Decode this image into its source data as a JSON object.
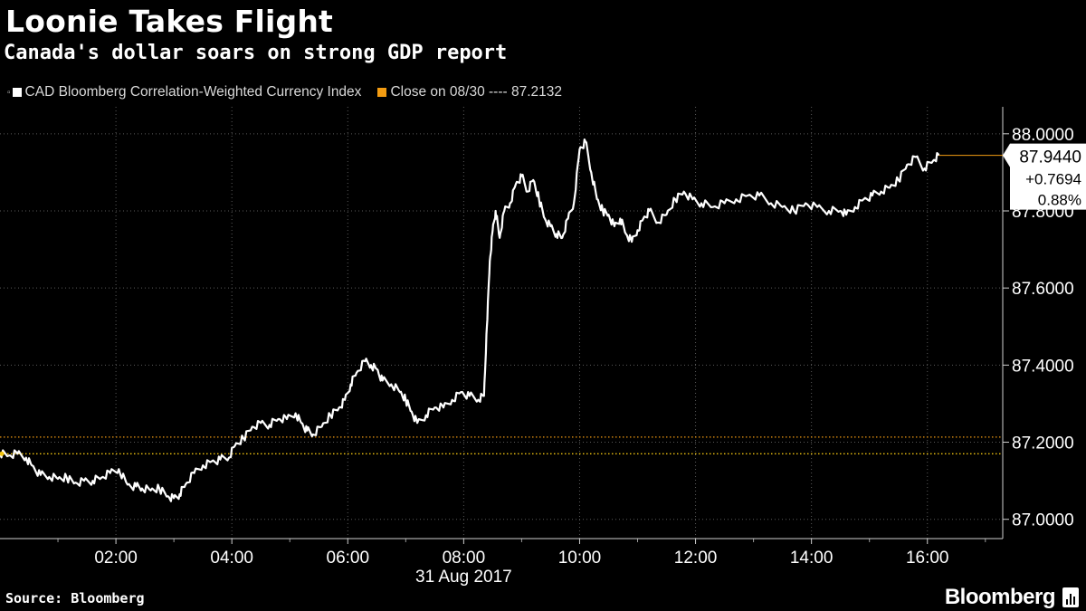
{
  "header": {
    "title": "Loonie Takes Flight",
    "subtitle": "Canada's dollar soars on strong GDP report"
  },
  "legend": {
    "dropdown_glyph": "▫",
    "items": [
      {
        "label": "CAD Bloomberg Correlation-Weighted Currency Index",
        "color": "#ffffff"
      },
      {
        "label": "Close on 08/30 ---- 87.2132",
        "color": "#f39c12"
      }
    ]
  },
  "footer": {
    "source": "Source: Bloomberg",
    "brand": "Bloomberg"
  },
  "chart_data": {
    "type": "line",
    "date_label": "31 Aug 2017",
    "x_tick_labels": [
      "02:00",
      "04:00",
      "06:00",
      "08:00",
      "10:00",
      "12:00",
      "14:00",
      "16:00"
    ],
    "x_ticks_hours": [
      2,
      4,
      6,
      8,
      10,
      12,
      14,
      16
    ],
    "xlim_hours": [
      0,
      17.3
    ],
    "y_tick_labels": [
      "87.0000",
      "87.2000",
      "87.4000",
      "87.6000",
      "87.8000",
      "88.0000"
    ],
    "y_ticks": [
      87.0,
      87.2,
      87.4,
      87.6,
      87.8,
      88.0
    ],
    "ylim": [
      86.95,
      88.07
    ],
    "grid": true,
    "legend_position": "top-left",
    "reference_lines": [
      {
        "value": 87.2132,
        "label": "Close on 08/30",
        "color": "#f39c12",
        "style": "dotted"
      },
      {
        "value": 87.17,
        "color": "#f1c40f",
        "style": "dotted"
      }
    ],
    "callout": {
      "last_value": "87.9440",
      "change": "+0.7694",
      "change_pct": "0.88%",
      "value": 87.944
    },
    "series": [
      {
        "name": "CAD Bloomberg Correlation-Weighted Currency Index",
        "color": "#ffffff",
        "x": [
          0.0,
          0.15,
          0.3,
          0.45,
          0.55,
          0.7,
          0.85,
          1.0,
          1.15,
          1.3,
          1.45,
          1.6,
          1.75,
          1.9,
          2.05,
          2.2,
          2.35,
          2.45,
          2.6,
          2.75,
          2.9,
          3.0,
          3.1,
          3.2,
          3.35,
          3.5,
          3.65,
          3.8,
          3.95,
          4.05,
          4.2,
          4.35,
          4.5,
          4.65,
          4.8,
          4.95,
          5.1,
          5.2,
          5.3,
          5.4,
          5.55,
          5.7,
          5.85,
          5.95,
          6.05,
          6.15,
          6.3,
          6.4,
          6.5,
          6.6,
          6.75,
          6.9,
          7.0,
          7.1,
          7.2,
          7.35,
          7.5,
          7.65,
          7.8,
          7.95,
          8.1,
          8.25,
          8.35,
          8.4,
          8.45,
          8.5,
          8.55,
          8.62,
          8.7,
          8.8,
          8.9,
          9.0,
          9.1,
          9.2,
          9.3,
          9.4,
          9.5,
          9.6,
          9.7,
          9.8,
          9.9,
          10.0,
          10.1,
          10.2,
          10.3,
          10.4,
          10.5,
          10.6,
          10.7,
          10.8,
          10.9,
          11.0,
          11.1,
          11.2,
          11.35,
          11.5,
          11.65,
          11.8,
          11.95,
          12.1,
          12.3,
          12.5,
          12.7,
          12.9,
          13.1,
          13.3,
          13.5,
          13.7,
          13.9,
          14.1,
          14.3,
          14.5,
          14.6,
          14.75,
          14.9,
          15.05,
          15.2,
          15.35,
          15.5,
          15.65,
          15.8,
          15.95,
          16.1,
          16.2
        ],
        "values": [
          87.17,
          87.165,
          87.17,
          87.16,
          87.14,
          87.115,
          87.11,
          87.105,
          87.108,
          87.095,
          87.1,
          87.1,
          87.108,
          87.12,
          87.13,
          87.09,
          87.085,
          87.08,
          87.075,
          87.08,
          87.06,
          87.055,
          87.065,
          87.09,
          87.12,
          87.14,
          87.15,
          87.155,
          87.16,
          87.19,
          87.21,
          87.24,
          87.25,
          87.245,
          87.26,
          87.26,
          87.275,
          87.25,
          87.23,
          87.22,
          87.24,
          87.27,
          87.29,
          87.31,
          87.35,
          87.38,
          87.41,
          87.4,
          87.39,
          87.36,
          87.35,
          87.33,
          87.31,
          87.28,
          87.25,
          87.27,
          87.29,
          87.29,
          87.31,
          87.33,
          87.32,
          87.31,
          87.32,
          87.5,
          87.67,
          87.75,
          87.8,
          87.73,
          87.8,
          87.82,
          87.87,
          87.89,
          87.85,
          87.88,
          87.83,
          87.78,
          87.76,
          87.74,
          87.73,
          87.78,
          87.82,
          87.96,
          87.98,
          87.9,
          87.83,
          87.8,
          87.79,
          87.76,
          87.78,
          87.74,
          87.72,
          87.75,
          87.78,
          87.8,
          87.77,
          87.79,
          87.83,
          87.85,
          87.83,
          87.82,
          87.81,
          87.82,
          87.83,
          87.84,
          87.84,
          87.82,
          87.81,
          87.8,
          87.82,
          87.81,
          87.8,
          87.8,
          87.79,
          87.81,
          87.83,
          87.84,
          87.85,
          87.86,
          87.88,
          87.92,
          87.94,
          87.91,
          87.93,
          87.944
        ]
      }
    ]
  }
}
